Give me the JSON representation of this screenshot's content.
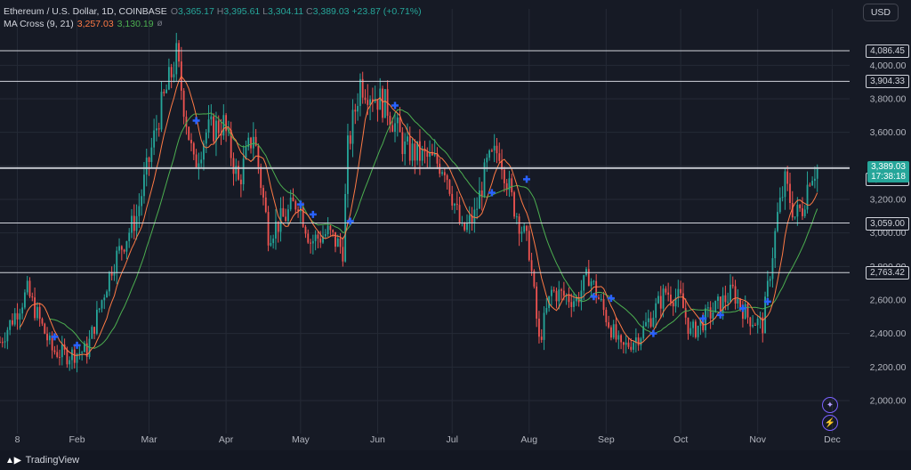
{
  "legend": {
    "title": "Ethereum / U.S. Dollar, 1D, COINBASE",
    "open_k": "O",
    "open": "3,365.17",
    "high_k": "H",
    "high": "3,395.61",
    "low_k": "L",
    "low": "3,304.11",
    "close_k": "C",
    "close": "3,389.03",
    "change": "+23.87 (+0.71%)",
    "indicator_name": "MA Cross (9, 21)",
    "ma_fast": "3,257.03",
    "ma_slow": "3,130.19"
  },
  "currency_button": "USD",
  "footer": {
    "brand": "TradingView",
    "logo": "tv-logo-icon"
  },
  "colors": {
    "background": "#161a25",
    "grid": "#252a36",
    "up": "#26a69a",
    "down": "#ef5350",
    "ma_fast": "#ff7a45",
    "ma_slow": "#4caf50",
    "cross": "#2962ff",
    "level": "#d1d4dc"
  },
  "chart_data": {
    "type": "candlestick",
    "x_axis_labels": [
      "8",
      "Feb",
      "Mar",
      "Apr",
      "May",
      "Jun",
      "Jul",
      "Aug",
      "Sep",
      "Oct",
      "Nov",
      "Dec"
    ],
    "x_axis_dates": [
      "2024-01-08",
      "2024-02-01",
      "2024-03-01",
      "2024-04-01",
      "2024-05-01",
      "2024-06-01",
      "2024-07-01",
      "2024-08-01",
      "2024-09-01",
      "2024-10-01",
      "2024-11-01",
      "2024-12-01"
    ],
    "y_ticks": [
      "2,000.00",
      "2,200.00",
      "2,400.00",
      "2,600.00",
      "2,800.00",
      "3,000.00",
      "3,200.00",
      "3,400.00",
      "3,600.00",
      "3,800.00",
      "4,000.00"
    ],
    "y_tick_values": [
      2000,
      2200,
      2400,
      2600,
      2800,
      3000,
      3200,
      3400,
      3600,
      3800,
      4000
    ],
    "ylim": [
      1830,
      4230
    ],
    "x_range_dates": [
      "2024-01-01",
      "2024-12-08"
    ],
    "grid": true,
    "horizontal_levels": [
      {
        "value": 4086.45,
        "label": "4,086.45"
      },
      {
        "value": 3904.33,
        "label": "3,904.33"
      },
      {
        "value": 3384.39,
        "label": "3,384.39"
      },
      {
        "value": 3059.0,
        "label": "3,059.00"
      },
      {
        "value": 2763.42,
        "label": "2,763.42"
      }
    ],
    "last_price": {
      "value": 3389.03,
      "label": "3,389.03",
      "countdown": "17:38:18"
    },
    "price_path": [
      {
        "date": "2024-01-01",
        "close": 2350
      },
      {
        "date": "2024-01-12",
        "close": 2650
      },
      {
        "date": "2024-01-22",
        "close": 2300
      },
      {
        "date": "2024-01-28",
        "close": 2270
      },
      {
        "date": "2024-02-05",
        "close": 2300
      },
      {
        "date": "2024-02-15",
        "close": 2800
      },
      {
        "date": "2024-02-25",
        "close": 3100
      },
      {
        "date": "2024-03-05",
        "close": 3700
      },
      {
        "date": "2024-03-12",
        "close": 4050
      },
      {
        "date": "2024-03-19",
        "close": 3400
      },
      {
        "date": "2024-03-24",
        "close": 3600
      },
      {
        "date": "2024-03-31",
        "close": 3650
      },
      {
        "date": "2024-04-06",
        "close": 3300
      },
      {
        "date": "2024-04-12",
        "close": 3600
      },
      {
        "date": "2024-04-18",
        "close": 3000
      },
      {
        "date": "2024-04-25",
        "close": 3100
      },
      {
        "date": "2024-04-30",
        "close": 3200
      },
      {
        "date": "2024-05-05",
        "close": 2950
      },
      {
        "date": "2024-05-12",
        "close": 3000
      },
      {
        "date": "2024-05-18",
        "close": 2900
      },
      {
        "date": "2024-05-20",
        "close": 3500
      },
      {
        "date": "2024-05-25",
        "close": 3900
      },
      {
        "date": "2024-06-05",
        "close": 3750
      },
      {
        "date": "2024-06-12",
        "close": 3500
      },
      {
        "date": "2024-06-20",
        "close": 3450
      },
      {
        "date": "2024-06-28",
        "close": 3400
      },
      {
        "date": "2024-07-05",
        "close": 3000
      },
      {
        "date": "2024-07-10",
        "close": 3100
      },
      {
        "date": "2024-07-15",
        "close": 3400
      },
      {
        "date": "2024-07-20",
        "close": 3500
      },
      {
        "date": "2024-07-25",
        "close": 3200
      },
      {
        "date": "2024-08-01",
        "close": 2900
      },
      {
        "date": "2024-08-05",
        "close": 2350
      },
      {
        "date": "2024-08-10",
        "close": 2650
      },
      {
        "date": "2024-08-20",
        "close": 2600
      },
      {
        "date": "2024-08-25",
        "close": 2750
      },
      {
        "date": "2024-09-01",
        "close": 2500
      },
      {
        "date": "2024-09-07",
        "close": 2300
      },
      {
        "date": "2024-09-15",
        "close": 2400
      },
      {
        "date": "2024-09-25",
        "close": 2650
      },
      {
        "date": "2024-10-01",
        "close": 2600
      },
      {
        "date": "2024-10-05",
        "close": 2400
      },
      {
        "date": "2024-10-15",
        "close": 2550
      },
      {
        "date": "2024-10-22",
        "close": 2650
      },
      {
        "date": "2024-10-28",
        "close": 2500
      },
      {
        "date": "2024-11-03",
        "close": 2450
      },
      {
        "date": "2024-11-09",
        "close": 3100
      },
      {
        "date": "2024-11-12",
        "close": 3300
      },
      {
        "date": "2024-11-16",
        "close": 3100
      },
      {
        "date": "2024-11-19",
        "close": 3150
      },
      {
        "date": "2024-11-22",
        "close": 3350
      },
      {
        "date": "2024-11-25",
        "close": 3389
      }
    ],
    "cross_markers": [
      {
        "date": "2024-01-23",
        "value": 2380
      },
      {
        "date": "2024-02-01",
        "value": 2330
      },
      {
        "date": "2024-03-20",
        "value": 3670
      },
      {
        "date": "2024-05-01",
        "value": 3170
      },
      {
        "date": "2024-05-06",
        "value": 3110
      },
      {
        "date": "2024-05-21",
        "value": 3070
      },
      {
        "date": "2024-06-08",
        "value": 3760
      },
      {
        "date": "2024-07-17",
        "value": 3240
      },
      {
        "date": "2024-07-31",
        "value": 3320
      },
      {
        "date": "2024-08-27",
        "value": 2620
      },
      {
        "date": "2024-09-03",
        "value": 2610
      },
      {
        "date": "2024-09-20",
        "value": 2400
      },
      {
        "date": "2024-10-10",
        "value": 2490
      },
      {
        "date": "2024-10-17",
        "value": 2510
      },
      {
        "date": "2024-10-26",
        "value": 2550
      },
      {
        "date": "2024-11-05",
        "value": 2590
      }
    ]
  },
  "side_icons": [
    {
      "name": "sparkle-icon",
      "glyph": "✦"
    },
    {
      "name": "lightning-icon",
      "glyph": "⚡"
    }
  ]
}
